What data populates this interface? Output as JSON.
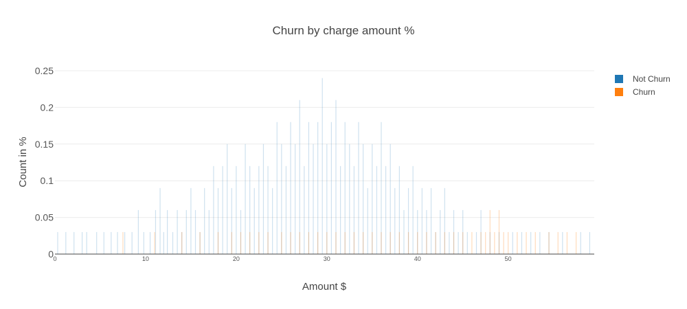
{
  "chart_data": {
    "type": "bar",
    "title": "Churn by charge amount %",
    "xlabel": "Amount $",
    "ylabel": "Count in %",
    "xlim": [
      0,
      59.5
    ],
    "ylim": [
      0,
      0.25
    ],
    "yticks": [
      {
        "value": 0,
        "label": "0"
      },
      {
        "value": 0.05,
        "label": "0.05"
      },
      {
        "value": 0.1,
        "label": "0.1"
      },
      {
        "value": 0.15,
        "label": "0.15"
      },
      {
        "value": 0.2,
        "label": "0.2"
      },
      {
        "value": 0.25,
        "label": "0.25"
      }
    ],
    "xticks": [
      {
        "value": 0,
        "label": "0"
      },
      {
        "value": 10,
        "label": "10"
      },
      {
        "value": 20,
        "label": "20"
      },
      {
        "value": 30,
        "label": "30"
      },
      {
        "value": 40,
        "label": "40"
      },
      {
        "value": 50,
        "label": "50"
      }
    ],
    "grid": true,
    "legend_position": "top-right",
    "series": [
      {
        "name": "Not Churn",
        "color": "#1f77b4",
        "points": [
          [
            0.3,
            0.03
          ],
          [
            1.2,
            0.03
          ],
          [
            2.1,
            0.03
          ],
          [
            3.0,
            0.03
          ],
          [
            3.5,
            0.03
          ],
          [
            4.6,
            0.03
          ],
          [
            5.4,
            0.03
          ],
          [
            6.2,
            0.03
          ],
          [
            6.9,
            0.03
          ],
          [
            7.7,
            0.03
          ],
          [
            8.5,
            0.03
          ],
          [
            9.2,
            0.06
          ],
          [
            9.8,
            0.03
          ],
          [
            10.5,
            0.03
          ],
          [
            11.1,
            0.06
          ],
          [
            11.6,
            0.09
          ],
          [
            12.0,
            0.03
          ],
          [
            12.4,
            0.06
          ],
          [
            13.0,
            0.03
          ],
          [
            13.5,
            0.06
          ],
          [
            14.0,
            0.03
          ],
          [
            14.5,
            0.06
          ],
          [
            15.0,
            0.09
          ],
          [
            15.5,
            0.06
          ],
          [
            16.0,
            0.03
          ],
          [
            16.5,
            0.09
          ],
          [
            17.0,
            0.06
          ],
          [
            17.5,
            0.12
          ],
          [
            18.0,
            0.09
          ],
          [
            18.5,
            0.12
          ],
          [
            19.0,
            0.15
          ],
          [
            19.5,
            0.09
          ],
          [
            20.0,
            0.12
          ],
          [
            20.5,
            0.06
          ],
          [
            21.0,
            0.15
          ],
          [
            21.5,
            0.12
          ],
          [
            22.0,
            0.09
          ],
          [
            22.5,
            0.12
          ],
          [
            23.0,
            0.15
          ],
          [
            23.5,
            0.12
          ],
          [
            24.0,
            0.09
          ],
          [
            24.5,
            0.18
          ],
          [
            25.0,
            0.15
          ],
          [
            25.5,
            0.12
          ],
          [
            26.0,
            0.18
          ],
          [
            26.5,
            0.15
          ],
          [
            27.0,
            0.21
          ],
          [
            27.5,
            0.12
          ],
          [
            28.0,
            0.18
          ],
          [
            28.5,
            0.15
          ],
          [
            29.0,
            0.18
          ],
          [
            29.5,
            0.24
          ],
          [
            30.0,
            0.15
          ],
          [
            30.5,
            0.18
          ],
          [
            31.0,
            0.21
          ],
          [
            31.5,
            0.12
          ],
          [
            32.0,
            0.18
          ],
          [
            32.5,
            0.15
          ],
          [
            33.0,
            0.12
          ],
          [
            33.5,
            0.18
          ],
          [
            34.0,
            0.15
          ],
          [
            34.5,
            0.09
          ],
          [
            35.0,
            0.15
          ],
          [
            35.5,
            0.12
          ],
          [
            36.0,
            0.18
          ],
          [
            36.5,
            0.12
          ],
          [
            37.0,
            0.15
          ],
          [
            37.5,
            0.09
          ],
          [
            38.0,
            0.12
          ],
          [
            38.5,
            0.06
          ],
          [
            39.0,
            0.09
          ],
          [
            39.5,
            0.12
          ],
          [
            40.0,
            0.06
          ],
          [
            40.5,
            0.09
          ],
          [
            41.0,
            0.06
          ],
          [
            41.5,
            0.09
          ],
          [
            42.0,
            0.03
          ],
          [
            42.5,
            0.06
          ],
          [
            43.0,
            0.09
          ],
          [
            43.5,
            0.03
          ],
          [
            44.0,
            0.06
          ],
          [
            44.5,
            0.03
          ],
          [
            45.0,
            0.06
          ],
          [
            45.5,
            0.03
          ],
          [
            46.5,
            0.03
          ],
          [
            47.0,
            0.06
          ],
          [
            48.0,
            0.03
          ],
          [
            49.0,
            0.03
          ],
          [
            50.5,
            0.03
          ],
          [
            51.5,
            0.03
          ],
          [
            52.5,
            0.03
          ],
          [
            53.5,
            0.03
          ],
          [
            54.5,
            0.03
          ],
          [
            56.0,
            0.03
          ],
          [
            58.0,
            0.03
          ],
          [
            59.0,
            0.03
          ]
        ]
      },
      {
        "name": "Churn",
        "color": "#ff7f0e",
        "points": [
          [
            7.5,
            0.03
          ],
          [
            11.0,
            0.03
          ],
          [
            14.0,
            0.03
          ],
          [
            16.0,
            0.03
          ],
          [
            18.0,
            0.03
          ],
          [
            19.5,
            0.03
          ],
          [
            20.5,
            0.03
          ],
          [
            21.5,
            0.03
          ],
          [
            22.5,
            0.03
          ],
          [
            23.5,
            0.03
          ],
          [
            25.0,
            0.03
          ],
          [
            26.0,
            0.03
          ],
          [
            27.0,
            0.03
          ],
          [
            28.0,
            0.03
          ],
          [
            29.0,
            0.03
          ],
          [
            30.0,
            0.03
          ],
          [
            31.0,
            0.03
          ],
          [
            32.0,
            0.03
          ],
          [
            33.0,
            0.03
          ],
          [
            34.0,
            0.03
          ],
          [
            35.0,
            0.03
          ],
          [
            36.0,
            0.03
          ],
          [
            37.0,
            0.03
          ],
          [
            38.0,
            0.03
          ],
          [
            39.0,
            0.03
          ],
          [
            40.0,
            0.03
          ],
          [
            41.0,
            0.03
          ],
          [
            42.0,
            0.03
          ],
          [
            43.0,
            0.03
          ],
          [
            44.0,
            0.03
          ],
          [
            45.0,
            0.03
          ],
          [
            46.0,
            0.03
          ],
          [
            47.0,
            0.03
          ],
          [
            47.5,
            0.03
          ],
          [
            48.0,
            0.06
          ],
          [
            48.5,
            0.03
          ],
          [
            49.0,
            0.06
          ],
          [
            49.5,
            0.03
          ],
          [
            50.0,
            0.03
          ],
          [
            51.0,
            0.03
          ],
          [
            52.0,
            0.03
          ],
          [
            53.0,
            0.03
          ],
          [
            54.5,
            0.03
          ],
          [
            55.5,
            0.03
          ],
          [
            56.5,
            0.03
          ],
          [
            57.5,
            0.03
          ]
        ]
      }
    ]
  }
}
